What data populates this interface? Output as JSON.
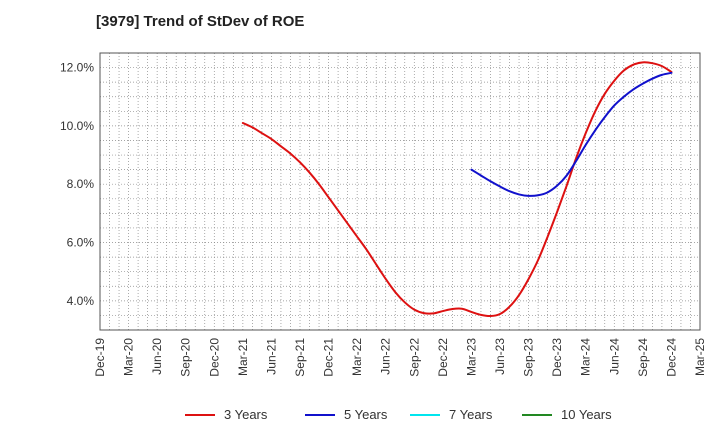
{
  "chart_data": {
    "type": "line",
    "title": "[3979]  Trend of StDev of ROE",
    "x_tick_labels": [
      "Dec-19",
      "Mar-20",
      "Jun-20",
      "Sep-20",
      "Dec-20",
      "Mar-21",
      "Jun-21",
      "Sep-21",
      "Dec-21",
      "Mar-22",
      "Jun-22",
      "Sep-22",
      "Dec-22",
      "Mar-23",
      "Jun-23",
      "Sep-23",
      "Dec-23",
      "Mar-24",
      "Jun-24",
      "Sep-24",
      "Dec-24",
      "Mar-25"
    ],
    "y_tick_labels": [
      "4.0%",
      "6.0%",
      "8.0%",
      "10.0%",
      "12.0%"
    ],
    "y_ticks": [
      4,
      6,
      8,
      10,
      12
    ],
    "ylim": [
      3,
      12.5
    ],
    "grid": true,
    "legend_position": "bottom",
    "series": [
      {
        "name": "3 Years",
        "color": "#dd1111",
        "x": [
          "Mar-21",
          "Apr-21",
          "May-21",
          "Jun-21",
          "Jul-21",
          "Aug-21",
          "Sep-21",
          "Oct-21",
          "Nov-21",
          "Dec-21",
          "Jan-22",
          "Feb-22",
          "Mar-22",
          "Apr-22",
          "May-22",
          "Jun-22",
          "Jul-22",
          "Aug-22",
          "Sep-22",
          "Oct-22",
          "Nov-22",
          "Dec-22",
          "Jan-23",
          "Feb-23",
          "Mar-23",
          "Apr-23",
          "May-23",
          "Jun-23",
          "Jul-23",
          "Aug-23",
          "Sep-23",
          "Oct-23",
          "Nov-23",
          "Dec-23",
          "Jan-24",
          "Feb-24",
          "Mar-24",
          "Apr-24",
          "May-24",
          "Jun-24",
          "Jul-24",
          "Aug-24",
          "Sep-24",
          "Oct-24",
          "Nov-24",
          "Dec-24"
        ],
        "values": [
          10.1,
          9.95,
          9.75,
          9.55,
          9.3,
          9.05,
          8.75,
          8.4,
          8.0,
          7.55,
          7.1,
          6.65,
          6.2,
          5.75,
          5.25,
          4.75,
          4.3,
          3.95,
          3.7,
          3.58,
          3.57,
          3.65,
          3.72,
          3.73,
          3.62,
          3.52,
          3.48,
          3.55,
          3.8,
          4.2,
          4.75,
          5.4,
          6.2,
          7.05,
          7.95,
          8.9,
          9.75,
          10.5,
          11.1,
          11.55,
          11.9,
          12.1,
          12.18,
          12.15,
          12.05,
          11.85
        ]
      },
      {
        "name": "5 Years",
        "color": "#1111cc",
        "x": [
          "Mar-23",
          "Apr-23",
          "May-23",
          "Jun-23",
          "Jul-23",
          "Aug-23",
          "Sep-23",
          "Oct-23",
          "Nov-23",
          "Dec-23",
          "Jan-24",
          "Feb-24",
          "Mar-24",
          "Apr-24",
          "May-24",
          "Jun-24",
          "Jul-24",
          "Aug-24",
          "Sep-24",
          "Oct-24",
          "Nov-24",
          "Dec-24"
        ],
        "values": [
          8.5,
          8.3,
          8.1,
          7.92,
          7.76,
          7.65,
          7.6,
          7.62,
          7.72,
          7.95,
          8.3,
          8.8,
          9.35,
          9.85,
          10.3,
          10.7,
          11.0,
          11.25,
          11.45,
          11.62,
          11.75,
          11.82
        ]
      },
      {
        "name": "7 Years",
        "color": "#00e5ee",
        "x": [],
        "values": []
      },
      {
        "name": "10 Years",
        "color": "#228822",
        "x": [],
        "values": []
      }
    ]
  }
}
